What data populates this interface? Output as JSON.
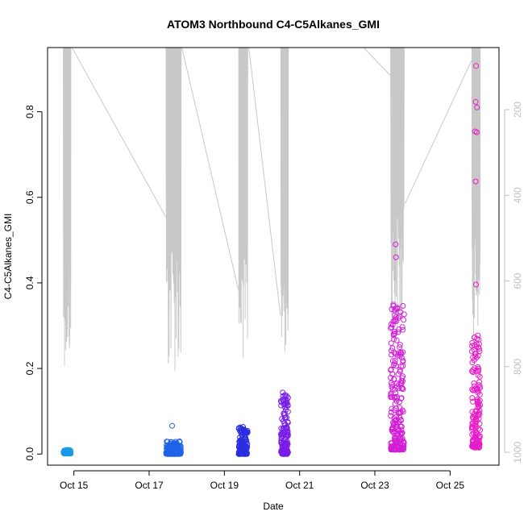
{
  "chart_data": {
    "type": "scatter",
    "title": "ATOM3 Northbound C4-C5Alkanes_GMI",
    "xlabel": "Date",
    "ylabel": "C4-C5Alkanes_GMI",
    "x_tick_labels": [
      "Oct 15",
      "Oct 17",
      "Oct 19",
      "Oct 21",
      "Oct 23",
      "Oct 25"
    ],
    "x_tick_days": [
      15,
      17,
      19,
      21,
      23,
      25
    ],
    "xlim_days": [
      14.3,
      26.3
    ],
    "ylim": [
      -0.026,
      0.95
    ],
    "y_ticks": [
      0.0,
      0.2,
      0.4,
      0.6,
      0.8
    ],
    "y_tick_labels": [
      "0.0",
      "0.2",
      "0.4",
      "0.6",
      "0.8"
    ],
    "y2_ticks": [
      200,
      400,
      600,
      800,
      1000
    ],
    "y2_tick_labels": [
      "200",
      "400",
      "600",
      "800",
      "1000"
    ],
    "y2lim_reversed": [
      1030,
      55
    ],
    "grid": false,
    "flights": [
      {
        "color": "#1a9ae6",
        "day_start": 14.72,
        "day_end": 14.92,
        "y_min": 0.001,
        "y_max": 0.01,
        "n": 60,
        "outliers": []
      },
      {
        "color": "#1f63e8",
        "day_start": 17.45,
        "day_end": 17.85,
        "y_min": 0.0,
        "y_max": 0.03,
        "n": 150,
        "outliers": [
          0.066
        ]
      },
      {
        "color": "#2a2ee0",
        "day_start": 19.38,
        "day_end": 19.62,
        "y_min": 0.0,
        "y_max": 0.065,
        "n": 130,
        "outliers": []
      },
      {
        "color": "#7a1ee6",
        "day_start": 20.5,
        "day_end": 20.7,
        "y_min": 0.0,
        "y_max": 0.145,
        "n": 140,
        "outliers": []
      },
      {
        "color": "#d21ed7",
        "day_start": 23.42,
        "day_end": 23.78,
        "y_min": 0.01,
        "y_max": 0.35,
        "n": 220,
        "outliers": [
          0.49,
          0.46
        ]
      },
      {
        "color": "#e61ec8",
        "day_start": 25.58,
        "day_end": 25.8,
        "y_min": 0.015,
        "y_max": 0.29,
        "n": 160,
        "outliers": [
          0.907,
          0.823,
          0.81,
          0.754,
          0.752,
          0.637,
          0.396
        ]
      }
    ],
    "pressure_traces": [
      {
        "day_start": 14.72,
        "day_end": 14.92,
        "p_min": 55,
        "p_max": 800
      },
      {
        "day_start": 17.45,
        "day_end": 17.85,
        "p_min": 55,
        "p_max": 820
      },
      {
        "day_start": 19.38,
        "day_end": 19.62,
        "p_min": 55,
        "p_max": 800
      },
      {
        "day_start": 20.5,
        "day_end": 20.7,
        "p_min": 55,
        "p_max": 780
      },
      {
        "day_start": 23.42,
        "day_end": 23.78,
        "p_min": 55,
        "p_max": 730
      },
      {
        "day_start": 25.58,
        "day_end": 25.8,
        "p_min": 55,
        "p_max": 730
      }
    ],
    "pressure_transits": [
      {
        "d1": 14.95,
        "p1": 55,
        "d2": 17.44,
        "p2": 450
      },
      {
        "d1": 17.87,
        "p1": 55,
        "d2": 19.37,
        "p2": 620
      },
      {
        "d1": 19.65,
        "p1": 55,
        "d2": 20.49,
        "p2": 680
      },
      {
        "d1": 22.7,
        "p1": 55,
        "d2": 23.41,
        "p2": 120
      },
      {
        "d1": 23.8,
        "p1": 420,
        "d2": 25.57,
        "p2": 85
      }
    ]
  }
}
